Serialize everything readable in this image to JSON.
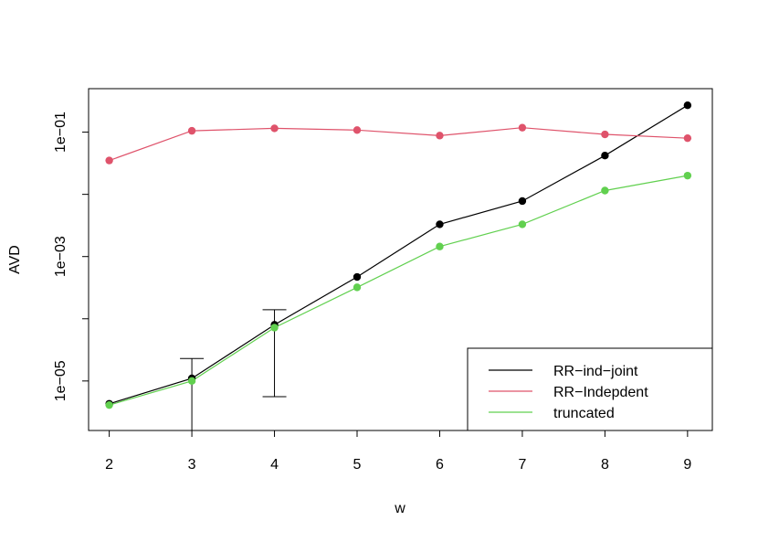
{
  "chart_data": {
    "type": "line",
    "xlabel": "w",
    "ylabel": "AVD",
    "x": [
      2,
      3,
      4,
      5,
      6,
      7,
      8,
      9
    ],
    "x_ticks": [
      "2",
      "3",
      "4",
      "5",
      "6",
      "7",
      "8",
      "9"
    ],
    "xlim": [
      1.75,
      9.3
    ],
    "y_scale": "log",
    "ylim": [
      1.6e-06,
      0.5
    ],
    "y_ticks": [
      {
        "value": 1e-05,
        "label": "1e−05"
      },
      {
        "value": 0.001,
        "label": "1e−03"
      },
      {
        "value": 0.1,
        "label": "1e−01"
      }
    ],
    "y_minor_ticks": [
      0.0001,
      0.01
    ],
    "grid": false,
    "legend_position": "bottom-right",
    "series": [
      {
        "name": "RR−ind−joint",
        "color": "#000000",
        "values": [
          4.3e-06,
          1.1e-05,
          8e-05,
          0.00047,
          0.0033,
          0.0078,
          0.042,
          0.27
        ]
      },
      {
        "name": "RR−Indepdent",
        "color": "#DF536B",
        "values": [
          0.035,
          0.105,
          0.115,
          0.108,
          0.088,
          0.118,
          0.092,
          0.08
        ]
      },
      {
        "name": "truncated",
        "color": "#61D04F",
        "values": [
          4.1e-06,
          1e-05,
          7.2e-05,
          0.00032,
          0.00145,
          0.0033,
          0.0115,
          0.02
        ]
      }
    ],
    "error_bars": [
      {
        "x": 3,
        "low": 1.6e-06,
        "high": 2.3e-05
      },
      {
        "x": 4,
        "low": 5.6e-06,
        "high": 0.00014
      }
    ]
  }
}
